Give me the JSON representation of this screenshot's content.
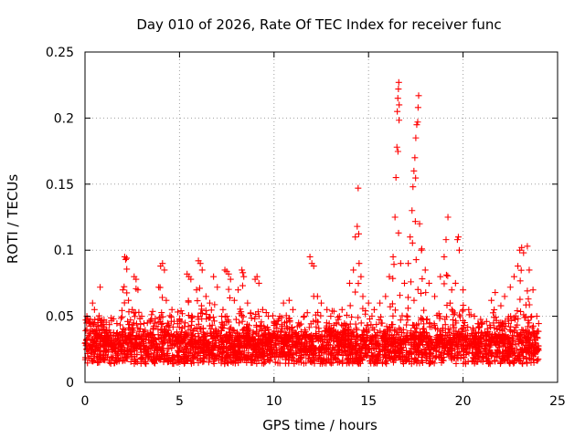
{
  "chart_data": {
    "type": "scatter",
    "title": "Day 010 of 2026, Rate Of TEC Index for receiver func",
    "xlabel": "GPS time / hours",
    "ylabel": "ROTI / TECUs",
    "xlim": [
      0,
      25
    ],
    "ylim": [
      0,
      0.25
    ],
    "xticks": [
      0,
      5,
      10,
      15,
      20,
      25
    ],
    "yticks": [
      0,
      0.05,
      0.1,
      0.15,
      0.2,
      0.25
    ],
    "xtick_labels": [
      "0",
      "5",
      "10",
      "15",
      "20",
      "25"
    ],
    "ytick_labels": [
      "0",
      "0.05",
      "0.1",
      "0.15",
      "0.2",
      "0.25"
    ],
    "grid": true,
    "marker": "+",
    "color": "#ff0000",
    "series": [
      {
        "name": "ROTI",
        "points": [
          [
            0.1,
            0.05
          ],
          [
            0.2,
            0.045
          ],
          [
            0.3,
            0.038
          ],
          [
            0.4,
            0.06
          ],
          [
            0.5,
            0.055
          ],
          [
            0.6,
            0.04
          ],
          [
            0.8,
            0.072
          ],
          [
            1.0,
            0.042
          ],
          [
            1.2,
            0.035
          ],
          [
            1.5,
            0.048
          ],
          [
            2.1,
            0.095
          ],
          [
            2.15,
            0.093
          ],
          [
            2.2,
            0.094
          ],
          [
            2.0,
            0.07
          ],
          [
            2.3,
            0.062
          ],
          [
            2.5,
            0.055
          ],
          [
            2.6,
            0.08
          ],
          [
            2.7,
            0.078
          ],
          [
            2.8,
            0.07
          ],
          [
            3.0,
            0.05
          ],
          [
            3.3,
            0.045
          ],
          [
            3.6,
            0.04
          ],
          [
            4.0,
            0.088
          ],
          [
            4.1,
            0.09
          ],
          [
            4.2,
            0.085
          ],
          [
            3.9,
            0.072
          ],
          [
            4.3,
            0.062
          ],
          [
            4.6,
            0.055
          ],
          [
            5.0,
            0.048
          ],
          [
            5.3,
            0.045
          ],
          [
            5.4,
            0.082
          ],
          [
            5.5,
            0.08
          ],
          [
            5.6,
            0.078
          ],
          [
            5.9,
            0.07
          ],
          [
            6.0,
            0.092
          ],
          [
            6.1,
            0.09
          ],
          [
            6.2,
            0.085
          ],
          [
            6.4,
            0.065
          ],
          [
            6.6,
            0.06
          ],
          [
            6.8,
            0.08
          ],
          [
            7.0,
            0.072
          ],
          [
            7.3,
            0.055
          ],
          [
            7.5,
            0.05
          ],
          [
            7.4,
            0.085
          ],
          [
            7.5,
            0.084
          ],
          [
            7.6,
            0.082
          ],
          [
            7.7,
            0.078
          ],
          [
            7.9,
            0.062
          ],
          [
            8.3,
            0.085
          ],
          [
            8.35,
            0.083
          ],
          [
            8.4,
            0.08
          ],
          [
            8.1,
            0.07
          ],
          [
            8.6,
            0.06
          ],
          [
            9.0,
            0.078
          ],
          [
            9.1,
            0.08
          ],
          [
            9.2,
            0.075
          ],
          [
            9.4,
            0.055
          ],
          [
            9.7,
            0.05
          ],
          [
            10.0,
            0.045
          ],
          [
            10.3,
            0.05
          ],
          [
            10.5,
            0.06
          ],
          [
            10.8,
            0.062
          ],
          [
            11.0,
            0.055
          ],
          [
            11.3,
            0.045
          ],
          [
            11.6,
            0.05
          ],
          [
            11.9,
            0.095
          ],
          [
            12.0,
            0.09
          ],
          [
            12.1,
            0.088
          ],
          [
            12.3,
            0.065
          ],
          [
            12.5,
            0.06
          ],
          [
            12.8,
            0.055
          ],
          [
            13.0,
            0.05
          ],
          [
            13.3,
            0.045
          ],
          [
            13.6,
            0.055
          ],
          [
            14.0,
            0.075
          ],
          [
            14.2,
            0.085
          ],
          [
            14.3,
            0.11
          ],
          [
            14.4,
            0.118
          ],
          [
            14.45,
            0.147
          ],
          [
            14.5,
            0.09
          ],
          [
            14.6,
            0.08
          ],
          [
            14.7,
            0.065
          ],
          [
            15.0,
            0.06
          ],
          [
            15.3,
            0.055
          ],
          [
            15.6,
            0.06
          ],
          [
            15.9,
            0.065
          ],
          [
            16.1,
            0.08
          ],
          [
            16.3,
            0.095
          ],
          [
            16.4,
            0.125
          ],
          [
            16.45,
            0.155
          ],
          [
            16.5,
            0.178
          ],
          [
            16.52,
            0.205
          ],
          [
            16.55,
            0.215
          ],
          [
            16.58,
            0.222
          ],
          [
            16.6,
            0.227
          ],
          [
            16.62,
            0.21
          ],
          [
            16.7,
            0.09
          ],
          [
            16.9,
            0.075
          ],
          [
            17.1,
            0.09
          ],
          [
            17.2,
            0.11
          ],
          [
            17.3,
            0.13
          ],
          [
            17.35,
            0.148
          ],
          [
            17.4,
            0.16
          ],
          [
            17.45,
            0.17
          ],
          [
            17.5,
            0.185
          ],
          [
            17.55,
            0.195
          ],
          [
            17.6,
            0.197
          ],
          [
            17.62,
            0.208
          ],
          [
            17.65,
            0.217
          ],
          [
            17.7,
            0.12
          ],
          [
            17.8,
            0.1
          ],
          [
            18.0,
            0.085
          ],
          [
            18.2,
            0.075
          ],
          [
            18.5,
            0.065
          ],
          [
            18.8,
            0.08
          ],
          [
            19.0,
            0.095
          ],
          [
            19.1,
            0.108
          ],
          [
            19.2,
            0.125
          ],
          [
            19.4,
            0.07
          ],
          [
            19.6,
            0.075
          ],
          [
            19.7,
            0.108
          ],
          [
            19.75,
            0.11
          ],
          [
            19.8,
            0.1
          ],
          [
            20.0,
            0.07
          ],
          [
            20.3,
            0.055
          ],
          [
            20.6,
            0.05
          ],
          [
            21.0,
            0.045
          ],
          [
            21.5,
            0.062
          ],
          [
            21.7,
            0.068
          ],
          [
            22.0,
            0.058
          ],
          [
            22.2,
            0.065
          ],
          [
            22.5,
            0.072
          ],
          [
            22.7,
            0.08
          ],
          [
            22.9,
            0.088
          ],
          [
            23.0,
            0.1
          ],
          [
            23.1,
            0.102
          ],
          [
            23.2,
            0.098
          ],
          [
            23.4,
            0.103
          ],
          [
            23.5,
            0.085
          ],
          [
            23.7,
            0.07
          ],
          [
            23.9,
            0.05
          ]
        ]
      }
    ]
  }
}
